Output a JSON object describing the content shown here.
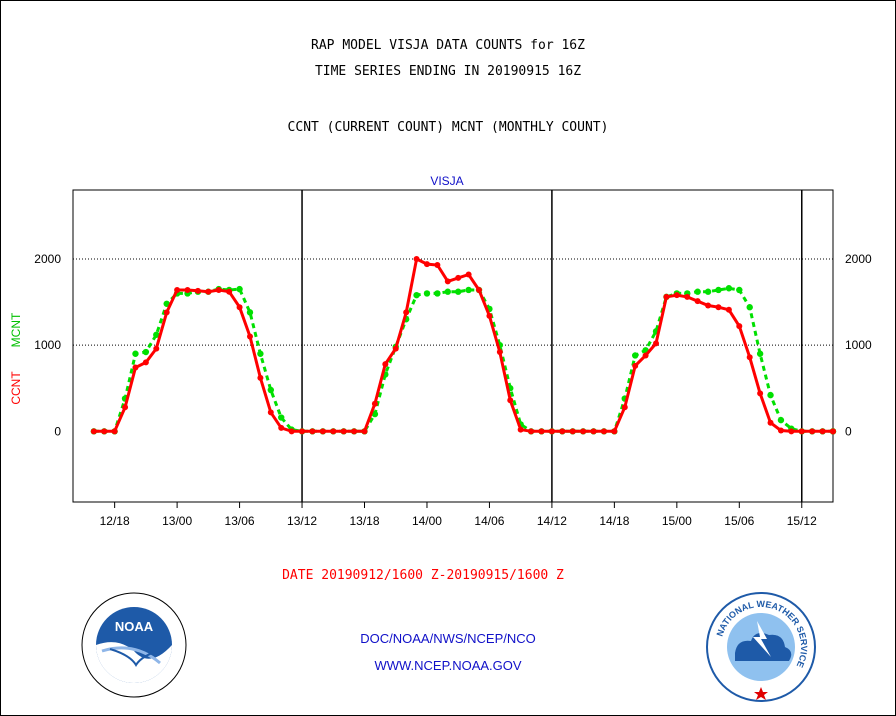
{
  "header": {
    "title_line1": "RAP MODEL VISJA DATA COUNTS for 16Z",
    "title_line2": "TIME SERIES ENDING IN 20190915 16Z",
    "title_line3": "CCNT (CURRENT COUNT) MCNT (MONTHLY COUNT)"
  },
  "footer": {
    "agency": "DOC/NOAA/NWS/NCEP/NCO",
    "website": "WWW.NCEP.NOAA.GOV",
    "noaa_logo_text": "NOAA",
    "nws_logo_text": "NATIONAL WEATHER SERVICE"
  },
  "chart_data": {
    "type": "line",
    "station_label": "VISJA",
    "date_label": "DATE 20190912/1600 Z-20190915/1600 Z",
    "ylabel_ccnt": "CCNT",
    "ylabel_mcnt": "MCNT",
    "ylim": [
      -820,
      2800
    ],
    "xlim": [
      14,
      87
    ],
    "yticks": [
      0,
      1000,
      2000
    ],
    "ytick_labels": [
      "0",
      "1000",
      "2000"
    ],
    "xticks": [
      {
        "hour": 18,
        "label": "12/18"
      },
      {
        "hour": 24,
        "label": "13/00"
      },
      {
        "hour": 30,
        "label": "13/06"
      },
      {
        "hour": 36,
        "label": "13/12"
      },
      {
        "hour": 42,
        "label": "13/18"
      },
      {
        "hour": 48,
        "label": "14/00"
      },
      {
        "hour": 54,
        "label": "14/06"
      },
      {
        "hour": 60,
        "label": "14/12"
      },
      {
        "hour": 66,
        "label": "14/18"
      },
      {
        "hour": 72,
        "label": "15/00"
      },
      {
        "hour": 78,
        "label": "15/06"
      },
      {
        "hour": 84,
        "label": "15/12"
      }
    ],
    "day_boundaries": [
      36,
      60,
      84
    ],
    "grid_y": [
      1000,
      2000
    ],
    "colors": {
      "ccnt": "#ff0000",
      "mcnt": "#00e000",
      "axis_labels": "#000000",
      "station": "#1010c8",
      "date": "#ff0000"
    },
    "x_hours": [
      16,
      17,
      18,
      19,
      20,
      21,
      22,
      23,
      24,
      25,
      26,
      27,
      28,
      29,
      30,
      31,
      32,
      33,
      34,
      35,
      36,
      37,
      38,
      39,
      40,
      41,
      42,
      43,
      44,
      45,
      46,
      47,
      48,
      49,
      50,
      51,
      52,
      53,
      54,
      55,
      56,
      57,
      58,
      59,
      60,
      61,
      62,
      63,
      64,
      65,
      66,
      67,
      68,
      69,
      70,
      71,
      72,
      73,
      74,
      75,
      76,
      77,
      78,
      79,
      80,
      81,
      82,
      83,
      84,
      85,
      86,
      87,
      88
    ],
    "series": [
      {
        "name": "CCNT",
        "values": [
          0,
          0,
          0,
          280,
          740,
          800,
          960,
          1380,
          1640,
          1640,
          1630,
          1620,
          1640,
          1620,
          1440,
          1100,
          620,
          220,
          40,
          0,
          0,
          0,
          0,
          0,
          0,
          0,
          0,
          320,
          780,
          960,
          1380,
          2000,
          1940,
          1930,
          1740,
          1780,
          1820,
          1640,
          1340,
          920,
          360,
          20,
          0,
          0,
          0,
          0,
          0,
          0,
          0,
          0,
          0,
          280,
          760,
          880,
          1020,
          1560,
          1580,
          1560,
          1510,
          1460,
          1440,
          1410,
          1220,
          860,
          440,
          100,
          10,
          0,
          0,
          0,
          0,
          0,
          0
        ],
        "color": "#ff0000"
      },
      {
        "name": "MCNT",
        "values": [
          0,
          0,
          0,
          380,
          900,
          920,
          1120,
          1480,
          1600,
          1600,
          1620,
          1620,
          1650,
          1640,
          1650,
          1380,
          900,
          480,
          160,
          20,
          0,
          0,
          0,
          0,
          0,
          0,
          0,
          200,
          660,
          980,
          1300,
          1580,
          1600,
          1600,
          1620,
          1620,
          1640,
          1640,
          1420,
          1000,
          500,
          80,
          0,
          0,
          0,
          0,
          0,
          0,
          0,
          0,
          0,
          380,
          880,
          940,
          1160,
          1560,
          1600,
          1600,
          1620,
          1620,
          1640,
          1660,
          1640,
          1440,
          900,
          420,
          130,
          30,
          0,
          0,
          0,
          0,
          0
        ],
        "color": "#00e000"
      }
    ]
  }
}
